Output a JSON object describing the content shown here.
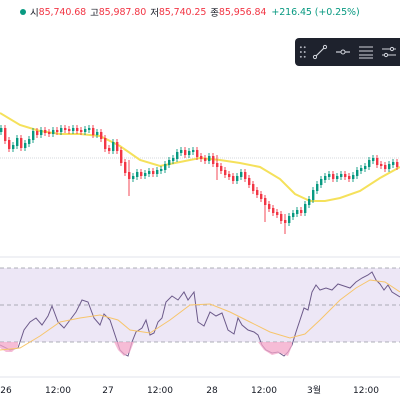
{
  "legend": {
    "open_label": "시",
    "open": "85,740.68",
    "high_label": "고",
    "high": "85,987.80",
    "low_label": "저",
    "low": "85,740.25",
    "close_label": "종",
    "close": "85,956.84",
    "change": "+216.45 (+0.25%)"
  },
  "toolbar": {
    "tools": [
      {
        "name": "trend-line-icon"
      },
      {
        "name": "horizontal-ray-icon"
      },
      {
        "name": "fib-levels-icon"
      },
      {
        "name": "parallel-lines-icon"
      }
    ]
  },
  "colors": {
    "up": "#089981",
    "down": "#f23645",
    "ma": "#f5e15b",
    "rsi": "#7e57c2",
    "rsi_ma": "#f7c56b",
    "rsi_band": "#ede7f6"
  },
  "chart_data": {
    "type": "candlestick",
    "x_ticks": [
      "26",
      "12:00",
      "27",
      "12:00",
      "28",
      "12:00",
      "3월",
      "12:00"
    ],
    "rsi_levels_visible": [
      70,
      50,
      30
    ]
  }
}
